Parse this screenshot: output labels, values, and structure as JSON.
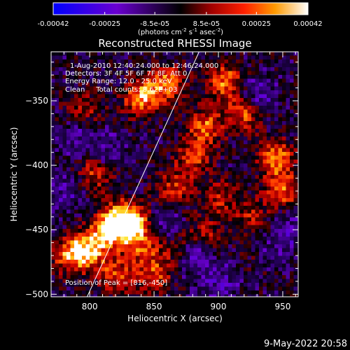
{
  "chart_data": {
    "type": "heatmap",
    "title": "Reconstructed RHESSI Image",
    "xlabel": "Heliocentric X (arcsec)",
    "ylabel": "Heliocentric Y (arcsec)",
    "xlim": [
      770,
      962
    ],
    "ylim": [
      -502,
      -312
    ],
    "x_ticks": [
      800,
      850,
      900,
      950
    ],
    "y_ticks": [
      -350,
      -400,
      -450,
      -500
    ],
    "colorbar": {
      "ticks": [
        "-0.00042",
        "-0.00025",
        "-8.5e-05",
        "8.5e-05",
        "0.00025",
        "0.00042"
      ],
      "tick_values": [
        -0.00042,
        -0.00025,
        -8.5e-05,
        8.5e-05,
        0.00025,
        0.00042
      ],
      "range": [
        -0.00042,
        0.00042
      ],
      "label_base": "(photons cm",
      "label_exp1": "-2",
      "label_mid": " s",
      "label_exp2": "-1",
      "label_mid2": " asec",
      "label_exp3": "-2",
      "label_end": ")"
    },
    "annotations": [
      "1-Aug-2010 12:40:24.000 to 12:46:24.000",
      "Detectors: 3F 4F 5F 6F 7F 8F, Att 0",
      "Energy Range: 12.0 - 25.0 keV",
      "Clean     Total counts: 8.62E+03"
    ],
    "peak_label": "Position of Peak = [816,-450]",
    "peak_position": [
      816,
      -450
    ],
    "limb_line": [
      [
        798,
        -502
      ],
      [
        885,
        -312
      ]
    ],
    "hot_regions": [
      {
        "x": 840,
        "y": -348,
        "strength": 0.9
      },
      {
        "x": 860,
        "y": -336,
        "strength": 0.8
      },
      {
        "x": 905,
        "y": -335,
        "strength": 0.8
      },
      {
        "x": 890,
        "y": -370,
        "strength": 0.75
      },
      {
        "x": 945,
        "y": -395,
        "strength": 0.85
      },
      {
        "x": 950,
        "y": -420,
        "strength": 0.7
      },
      {
        "x": 880,
        "y": -395,
        "strength": 0.6
      },
      {
        "x": 865,
        "y": -418,
        "strength": 0.55
      },
      {
        "x": 805,
        "y": -405,
        "strength": 0.6
      },
      {
        "x": 825,
        "y": -440,
        "strength": 0.7
      },
      {
        "x": 835,
        "y": -447,
        "strength": 0.9
      },
      {
        "x": 816,
        "y": -450,
        "strength": 1.0
      },
      {
        "x": 800,
        "y": -465,
        "strength": 0.85
      },
      {
        "x": 785,
        "y": -470,
        "strength": 0.8
      },
      {
        "x": 820,
        "y": -485,
        "strength": 0.65
      },
      {
        "x": 850,
        "y": -485,
        "strength": 0.6
      },
      {
        "x": 920,
        "y": -360,
        "strength": 0.7
      },
      {
        "x": 795,
        "y": -355,
        "strength": 0.45
      },
      {
        "x": 900,
        "y": -425,
        "strength": 0.5
      },
      {
        "x": 925,
        "y": -440,
        "strength": 0.45
      },
      {
        "x": 935,
        "y": -470,
        "strength": 0.4
      },
      {
        "x": 890,
        "y": -455,
        "strength": 0.45
      },
      {
        "x": 870,
        "y": -465,
        "strength": 0.45
      },
      {
        "x": 842,
        "y": -465,
        "strength": 0.5
      }
    ],
    "cold_regions": [
      {
        "x": 882,
        "y": -470,
        "strength": 0.9
      },
      {
        "x": 900,
        "y": -490,
        "strength": 0.7
      },
      {
        "x": 940,
        "y": -468,
        "strength": 0.6
      },
      {
        "x": 790,
        "y": -380,
        "strength": 0.5
      },
      {
        "x": 815,
        "y": -390,
        "strength": 0.6
      },
      {
        "x": 778,
        "y": -420,
        "strength": 0.6
      },
      {
        "x": 858,
        "y": -445,
        "strength": 0.5
      },
      {
        "x": 930,
        "y": -345,
        "strength": 0.5
      },
      {
        "x": 955,
        "y": -450,
        "strength": 0.5
      }
    ]
  },
  "footer": {
    "date": "9-May-2022 20:58"
  }
}
